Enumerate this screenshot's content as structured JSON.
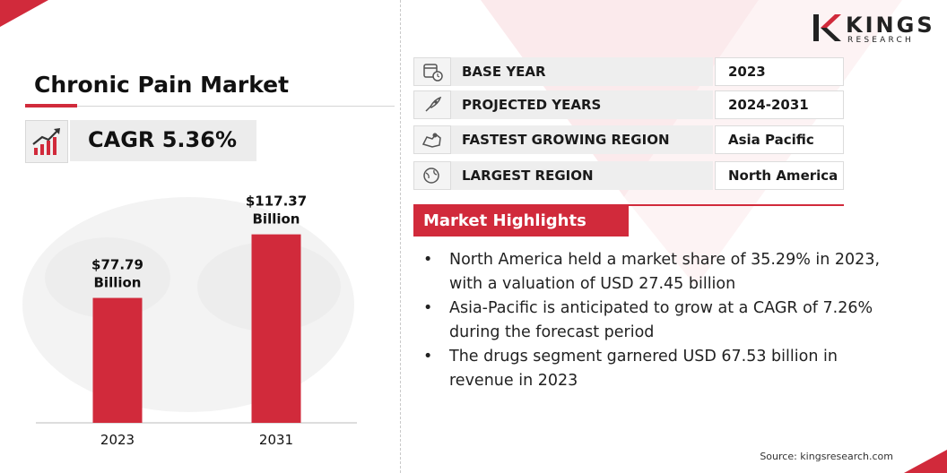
{
  "brand": {
    "name": "KINGS",
    "sub": "RESEARCH",
    "accent": "#d12a3b"
  },
  "title": "Chronic Pain Market",
  "cagr": {
    "label": "CAGR 5.36%",
    "icon": "growth-chart-icon"
  },
  "chart_data": {
    "type": "bar",
    "categories": [
      "2023",
      "2031"
    ],
    "values": [
      77.79,
      117.37
    ],
    "value_labels": [
      [
        "$77.79",
        "Billion"
      ],
      [
        "$117.37",
        "Billion"
      ]
    ],
    "unit": "USD Billion",
    "title": "",
    "xlabel": "",
    "ylabel": "",
    "ylim": [
      0,
      135
    ],
    "grid": false,
    "color": "#d12a3b"
  },
  "info": [
    {
      "icon": "calendar-clock-icon",
      "label": "BASE YEAR",
      "value": "2023"
    },
    {
      "icon": "rocket-icon",
      "label": "PROJECTED YEARS",
      "value": "2024-2031"
    },
    {
      "icon": "region-map-icon",
      "label": "FASTEST GROWING REGION",
      "value": "Asia Pacific"
    },
    {
      "icon": "globe-icon",
      "label": "LARGEST REGION",
      "value": "North America"
    }
  ],
  "highlights": {
    "title": "Market Highlights",
    "items": [
      {
        "line1": "North America held a market share of 35.29% in 2023,",
        "line2": "with a valuation of USD 27.45 billion"
      },
      {
        "line1": "Asia-Pacific is anticipated to grow at a CAGR of 7.26%",
        "line2": "during the forecast period"
      },
      {
        "line1": "The drugs segment garnered USD 67.53 billion in",
        "line2": "revenue in 2023"
      }
    ]
  },
  "source": "Source: kingsresearch.com"
}
